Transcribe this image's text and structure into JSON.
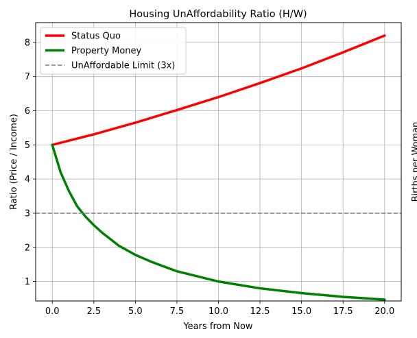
{
  "chart_data": {
    "type": "line",
    "title": "Housing UnAffordability Ratio (H/W)",
    "xlabel": "Years from Now",
    "ylabel": "Ratio (Price / Income)",
    "right_ylabel": "Births per Woman",
    "xlim": [
      -1,
      21
    ],
    "ylim": [
      0.43,
      8.58
    ],
    "xticks": [
      "0.0",
      "2.5",
      "5.0",
      "7.5",
      "10.0",
      "12.5",
      "15.0",
      "17.5",
      "20.0"
    ],
    "yticks": [
      "1",
      "2",
      "3",
      "4",
      "5",
      "6",
      "7",
      "8"
    ],
    "grid": true,
    "legend_position": "top-left",
    "series": [
      {
        "name": "Status Quo",
        "color": "#ff0000",
        "style": "solid",
        "x": [
          0,
          2.5,
          5,
          7.5,
          10,
          12.5,
          15,
          17.5,
          20
        ],
        "y": [
          5.0,
          5.31,
          5.65,
          6.02,
          6.4,
          6.81,
          7.24,
          7.71,
          8.2
        ]
      },
      {
        "name": "Property Money",
        "color": "#008000",
        "style": "solid",
        "x": [
          0,
          0.5,
          1,
          1.5,
          2,
          2.5,
          3,
          4,
          5,
          6,
          7.5,
          10,
          12.5,
          15,
          17.5,
          20
        ],
        "y": [
          5.0,
          4.2,
          3.65,
          3.2,
          2.9,
          2.65,
          2.43,
          2.05,
          1.78,
          1.57,
          1.3,
          1.0,
          0.8,
          0.66,
          0.55,
          0.47
        ]
      },
      {
        "name": "UnAffordable Limit (3x)",
        "color": "#808080",
        "style": "dashed",
        "x": [
          -1,
          21
        ],
        "y": [
          3,
          3
        ]
      }
    ]
  }
}
